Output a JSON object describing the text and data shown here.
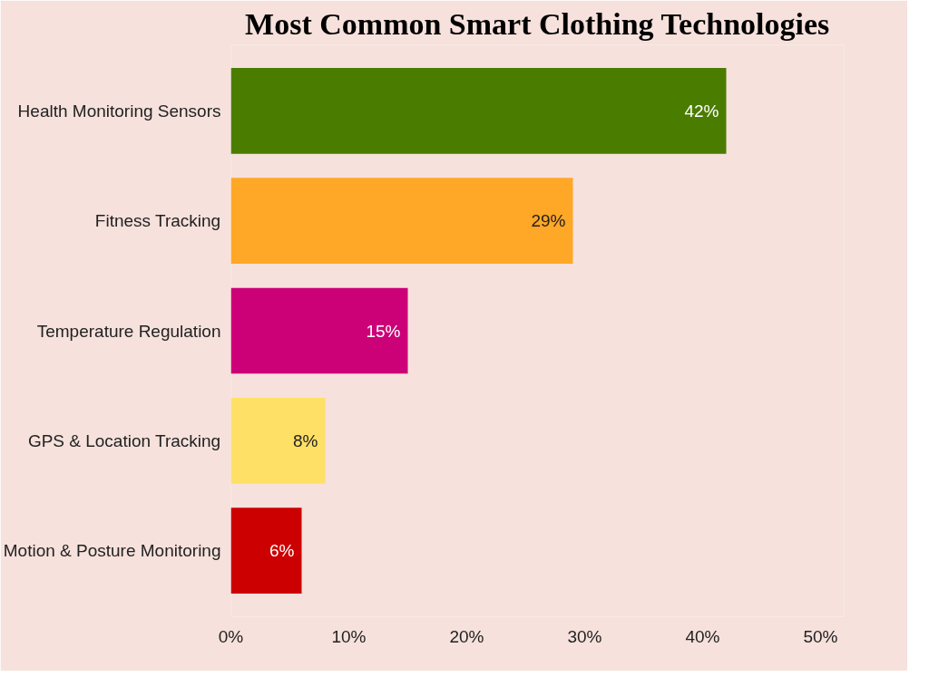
{
  "chart_data": {
    "type": "bar",
    "orientation": "horizontal",
    "title": "Most Common Smart Clothing Technologies",
    "categories": [
      "Health Monitoring Sensors",
      "Fitness Tracking",
      "Temperature Regulation",
      "GPS & Location Tracking",
      "Motion & Posture Monitoring"
    ],
    "values": [
      42,
      29,
      15,
      8,
      6
    ],
    "colors": [
      "#4a7c00",
      "#ffa726",
      "#cc0077",
      "#ffe066",
      "#cc0000"
    ],
    "value_labels": [
      "42%",
      "29%",
      "15%",
      "8%",
      "6%"
    ],
    "xlim": [
      0,
      52
    ],
    "xticks": [
      {
        "value": 0,
        "label": "0%"
      },
      {
        "value": 10,
        "label": "10%"
      },
      {
        "value": 20,
        "label": "20%"
      },
      {
        "value": 30,
        "label": "30%"
      },
      {
        "value": 40,
        "label": "40%"
      },
      {
        "value": 50,
        "label": "50%"
      }
    ],
    "grid": false
  }
}
